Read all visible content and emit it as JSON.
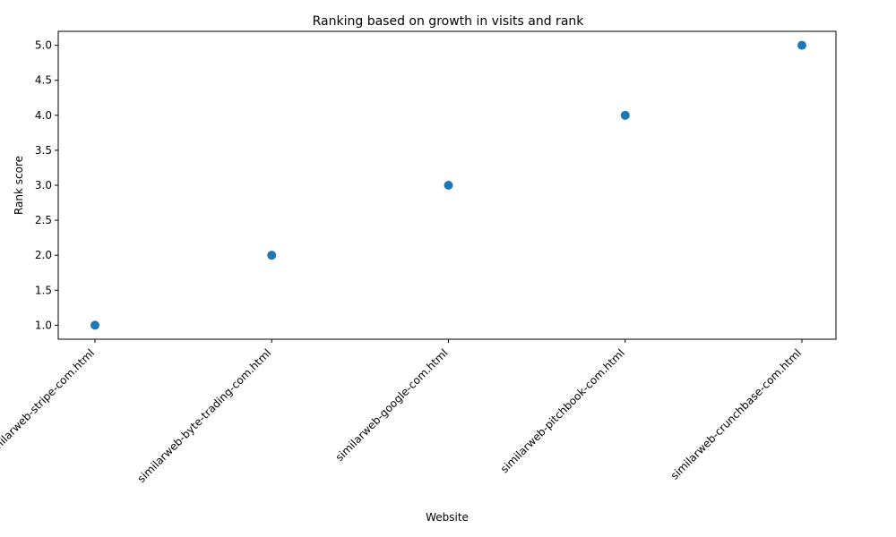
{
  "chart_data": {
    "type": "scatter",
    "title": "Ranking based on growth in visits and rank",
    "xlabel": "Website",
    "ylabel": "Rank score",
    "categories": [
      "similarweb-stripe-com.html",
      "similarweb-byte-trading-com.html",
      "similarweb-google-com.html",
      "similarweb-pitchbook-com.html",
      "similarweb-crunchbase-com.html"
    ],
    "values": [
      1,
      2,
      3,
      4,
      5
    ],
    "ylim": [
      0.8,
      5.2
    ],
    "yticks": [
      "1.0",
      "1.5",
      "2.0",
      "2.5",
      "3.0",
      "3.5",
      "4.0",
      "4.5",
      "5.0"
    ],
    "ytick_values": [
      1.0,
      1.5,
      2.0,
      2.5,
      3.0,
      3.5,
      4.0,
      4.5,
      5.0
    ],
    "xtick_rotation_deg": 45,
    "grid": false,
    "legend": "none",
    "marker_color": "#1f77b4"
  }
}
